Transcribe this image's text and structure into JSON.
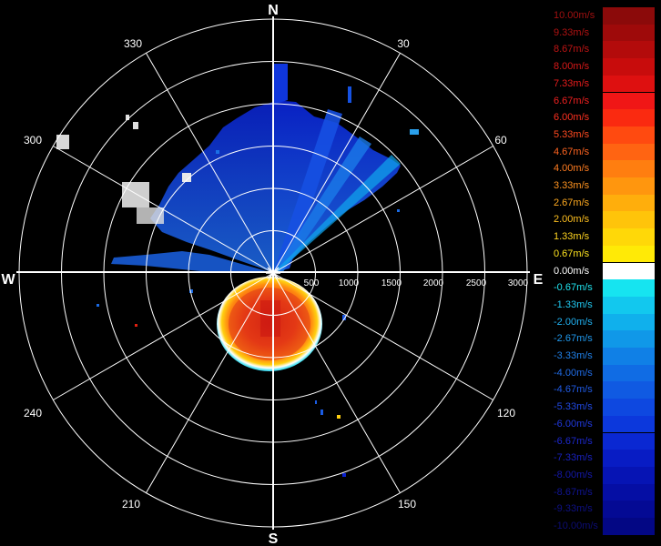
{
  "radar": {
    "compass": {
      "north": "N",
      "east": "E",
      "south": "S",
      "west": "W"
    },
    "bearing_labels": [
      "30",
      "60",
      "120",
      "150",
      "210",
      "240",
      "300",
      "330"
    ],
    "range_labels": [
      "500",
      "1000",
      "1500",
      "2000",
      "2500",
      "3000"
    ]
  },
  "legend": {
    "entries": [
      {
        "label": "10.00m/s",
        "color": "#8b0a0a",
        "text_color": "#a01010"
      },
      {
        "label": "9.33m/s",
        "color": "#9e0a0a",
        "text_color": "#b01212"
      },
      {
        "label": "8.67m/s",
        "color": "#b30b0b",
        "text_color": "#c01414"
      },
      {
        "label": "8.00m/s",
        "color": "#c80c0c",
        "text_color": "#d81818"
      },
      {
        "label": "7.33m/s",
        "color": "#de1010",
        "text_color": "#e81c1c"
      },
      {
        "label": "6.67m/s",
        "color": "#f01616",
        "text_color": "#f02020"
      },
      {
        "label": "6.00m/s",
        "color": "#fa2a10",
        "text_color": "#ff3020"
      },
      {
        "label": "5.33m/s",
        "color": "#ff4a10",
        "text_color": "#ff4a20"
      },
      {
        "label": "4.67m/s",
        "color": "#ff6412",
        "text_color": "#ff6420"
      },
      {
        "label": "4.00m/s",
        "color": "#ff7e10",
        "text_color": "#ff7c20"
      },
      {
        "label": "3.33m/s",
        "color": "#ff960e",
        "text_color": "#ff9420"
      },
      {
        "label": "2.67m/s",
        "color": "#ffae0c",
        "text_color": "#ffaa20"
      },
      {
        "label": "2.00m/s",
        "color": "#ffc40a",
        "text_color": "#ffc020"
      },
      {
        "label": "1.33m/s",
        "color": "#ffd808",
        "text_color": "#ffd420"
      },
      {
        "label": "0.67m/s",
        "color": "#ffea06",
        "text_color": "#ffe420"
      },
      {
        "label": "0.00m/s",
        "color": "#ffffff",
        "text_color": "#ffffff"
      },
      {
        "label": "-0.67m/s",
        "color": "#16e4f0",
        "text_color": "#20e4f0"
      },
      {
        "label": "-1.33m/s",
        "color": "#12c8ee",
        "text_color": "#20c8f0"
      },
      {
        "label": "-2.00m/s",
        "color": "#10b0ec",
        "text_color": "#20b0f0"
      },
      {
        "label": "-2.67m/s",
        "color": "#1098e8",
        "text_color": "#2098ec"
      },
      {
        "label": "-3.33m/s",
        "color": "#1080e6",
        "text_color": "#2080e8"
      },
      {
        "label": "-4.00m/s",
        "color": "#106ce4",
        "text_color": "#206ce6"
      },
      {
        "label": "-4.67m/s",
        "color": "#105ae2",
        "text_color": "#205ae4"
      },
      {
        "label": "-5.33m/s",
        "color": "#0e48e0",
        "text_color": "#2048e0"
      },
      {
        "label": "-6.00m/s",
        "color": "#0c38dc",
        "text_color": "#2038dc"
      },
      {
        "label": "-6.67m/s",
        "color": "#0a28d2",
        "text_color": "#1c28cc"
      },
      {
        "label": "-7.33m/s",
        "color": "#081cc4",
        "text_color": "#1820bc"
      },
      {
        "label": "-8.00m/s",
        "color": "#0614b4",
        "text_color": "#1418a8"
      },
      {
        "label": "-8.67m/s",
        "color": "#050ea4",
        "text_color": "#101494"
      },
      {
        "label": "-9.33m/s",
        "color": "#040a94",
        "text_color": "#0e1084"
      },
      {
        "label": "-10.00m/s",
        "color": "#030784",
        "text_color": "#0c0c74"
      }
    ]
  }
}
